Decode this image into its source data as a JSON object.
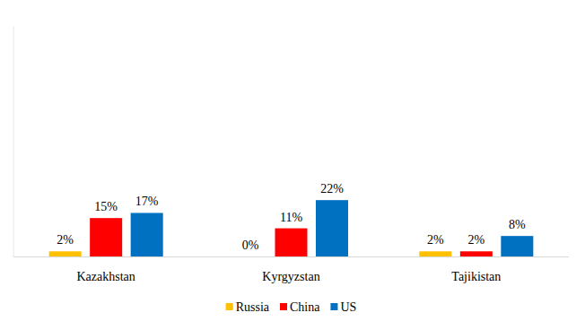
{
  "chart_data": {
    "type": "bar",
    "categories": [
      "Kazakhstan",
      "Kyrgyzstan",
      "Tajikistan"
    ],
    "series": [
      {
        "name": "Russia",
        "color": "#ffc000",
        "values": [
          2,
          0,
          2
        ],
        "value_labels": [
          "2%",
          "0%",
          "2%"
        ]
      },
      {
        "name": "China",
        "color": "#ff0000",
        "values": [
          15,
          11,
          2
        ],
        "value_labels": [
          "15%",
          "11%",
          "2%"
        ]
      },
      {
        "name": "US",
        "color": "#0070c0",
        "values": [
          17,
          22,
          8
        ],
        "value_labels": [
          "17%",
          "22%",
          "8%"
        ]
      }
    ],
    "ylim": [
      0,
      90
    ],
    "data_labels": true,
    "tick_labels": "x",
    "legend": "bottom",
    "grid": false
  }
}
